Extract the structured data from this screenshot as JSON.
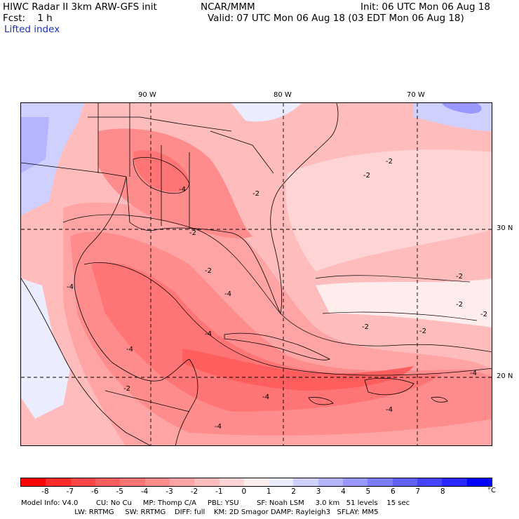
{
  "header": {
    "line1_left": "HIWC Radar II 3km ARW-GFS init",
    "line1_mid": "NCAR/MMM",
    "line1_right": "Init: 06 UTC Mon 06 Aug 18",
    "fcst": "Fcst:    1 h",
    "valid": "Valid: 07 UTC Mon 06 Aug 18 (03 EDT Mon 06 Aug 18)",
    "field": "Lifted index"
  },
  "map": {
    "lon_labels": [
      "90 W",
      "80 W",
      "70 W"
    ],
    "lat_labels": [
      "30 N",
      "20 N"
    ],
    "contour_labels": [
      "-2",
      "-2",
      "-2",
      "-2",
      "-2",
      "-2",
      "-2",
      "-2",
      "-2",
      "-2",
      "-4",
      "-4",
      "-4",
      "-4",
      "-4",
      "-4",
      "-4",
      "-4",
      "-4",
      "-2"
    ]
  },
  "colorbar": {
    "colors": [
      "#ff0000",
      "#ff2a2a",
      "#ff4646",
      "#ff5e5e",
      "#ff7474",
      "#ff8c8c",
      "#ffa4a4",
      "#ffbcbc",
      "#ffd4d4",
      "#ffecec",
      "#ececff",
      "#d0d0ff",
      "#b4b4ff",
      "#9898ff",
      "#7c7cff",
      "#6060ff",
      "#4444ff",
      "#2828ff",
      "#0000ff"
    ],
    "ticks": [
      "-8",
      "-7",
      "-6",
      "-5",
      "-4",
      "-3",
      "-2",
      "-1",
      "0",
      "1",
      "2",
      "3",
      "4",
      "5",
      "6",
      "7",
      "8"
    ],
    "unit": "°C"
  },
  "footer": {
    "line1": "Model Info: V4.0        CU: No Cu     MP: Thomp C/A     PBL: YSU        SF: Noah LSM     3.0 km   51 levels    15 sec",
    "line2": "                        LW: RRTMG     SW: RRTMG    DIFF: full    KM: 2D Smagor DAMP: Rayleigh3   SFLAY: MM5"
  }
}
